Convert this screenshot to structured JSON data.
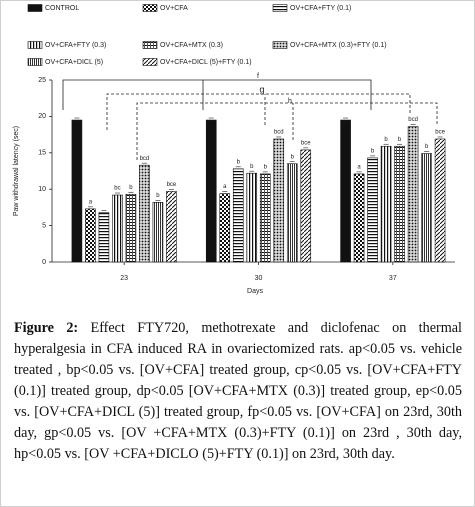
{
  "chart_data": {
    "type": "bar",
    "categories": [
      "23",
      "30",
      "37"
    ],
    "x_label": "Days",
    "y_label": "Paw withdrawal latency (sec)",
    "ylim": [
      0,
      25
    ],
    "yticks": [
      0,
      5,
      10,
      15,
      20,
      25
    ],
    "series": [
      {
        "name": "CONTROL",
        "color": "#111111",
        "pattern": "solid",
        "values": [
          19.5,
          19.5,
          19.5
        ],
        "bar_labels": [
          null,
          null,
          null
        ]
      },
      {
        "name": "OV+CFA",
        "color": "#111111",
        "pattern": "checker",
        "values": [
          7.3,
          9.4,
          12.1
        ],
        "bar_labels": [
          "a",
          "a",
          "a"
        ]
      },
      {
        "name": "OV+CFA+FTY (0.1)",
        "color": "#111111",
        "pattern": "horizontal",
        "values": [
          6.8,
          12.8,
          14.3
        ],
        "bar_labels": [
          null,
          "b",
          "b"
        ]
      },
      {
        "name": "OV+CFA+FTY (0.3)",
        "color": "#111111",
        "pattern": "vertical",
        "values": [
          9.2,
          12.2,
          15.9
        ],
        "bar_labels": [
          "bc",
          "b",
          "b"
        ]
      },
      {
        "name": "OV+CFA+MTX (0.3)",
        "color": "#111111",
        "pattern": "hgrid",
        "values": [
          9.3,
          12.1,
          15.9
        ],
        "bar_labels": [
          "b",
          "b",
          "b"
        ]
      },
      {
        "name": "OV+CFA+MTX (0.3)+FTY (0.1)",
        "color": "#111111",
        "pattern": "dots",
        "values": [
          13.3,
          16.9,
          18.6
        ],
        "bar_labels": [
          "bcd",
          "bcd",
          "bcd"
        ]
      },
      {
        "name": "OV+CFA+DICL (5)",
        "color": "#111111",
        "pattern": "vdense",
        "values": [
          8.2,
          13.5,
          14.9
        ],
        "bar_labels": [
          "b",
          "b",
          "b"
        ]
      },
      {
        "name": "OV+CFA+DICL (5)+FTY (0.1)",
        "color": "#111111",
        "pattern": "stripes",
        "values": [
          9.7,
          15.4,
          16.9
        ],
        "bar_labels": [
          "bce",
          "bce",
          "bce"
        ]
      }
    ],
    "annotations": [
      "f",
      "g",
      "h"
    ]
  },
  "caption": {
    "label": "Figure 2:",
    "text": "Effect FTY720, methotrexate and diclofenac on thermal hyperalgesia in CFA induced RA in ovariectomized rats. ap<0.05 vs. vehicle treated , bp<0.05 vs. [OV+CFA] treated group, cp<0.05 vs. [OV+CFA+FTY (0.1)] treated group, dp<0.05 [OV+CFA+MTX (0.3)] treated group, ep<0.05 vs. [OV+CFA+DICL (5)] treated group, fp<0.05 vs. [OV+CFA] on 23rd, 30th day, gp<0.05 vs. [OV +CFA+MTX (0.3)+FTY (0.1)] on 23rd , 30th day, hp<0.05 vs. [OV +CFA+DICLO (5)+FTY (0.1)] on 23rd, 30th day."
  }
}
